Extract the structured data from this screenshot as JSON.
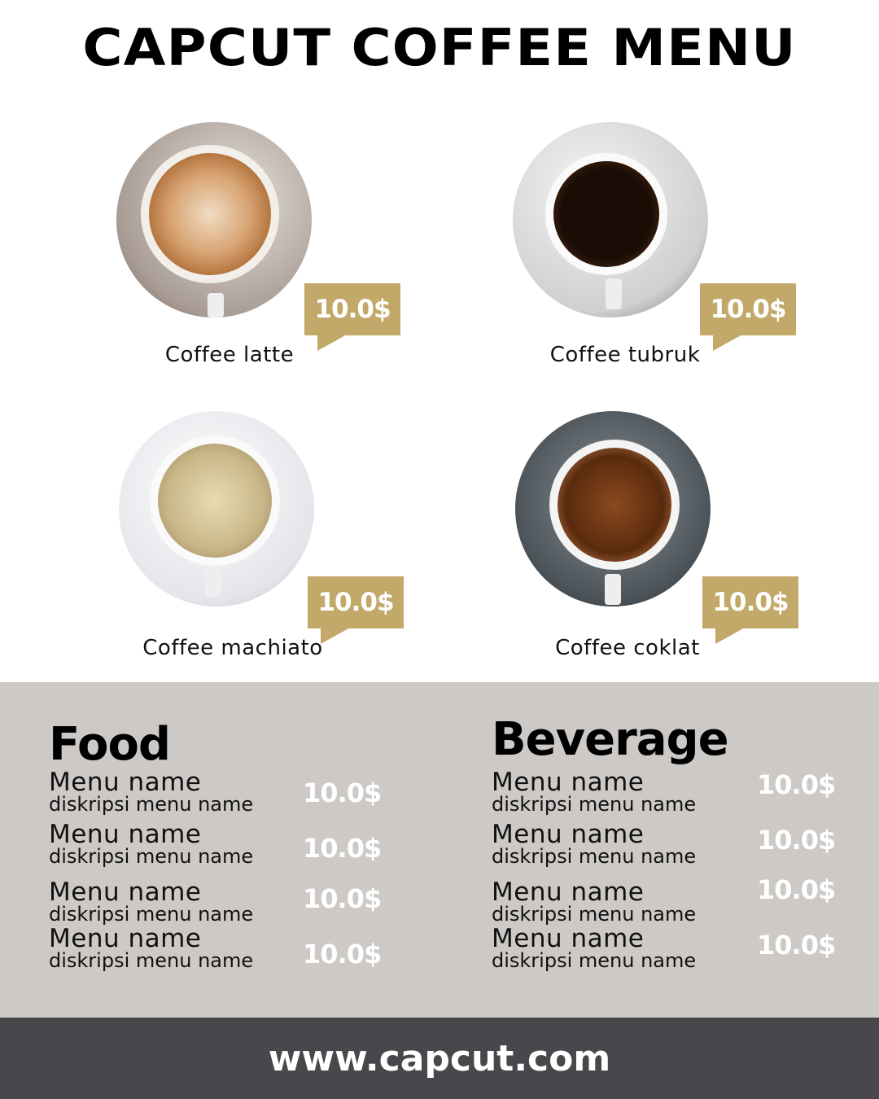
{
  "title": "CAPCUT COFFEE MENU",
  "accent_color": "#c2a96a",
  "items": [
    {
      "name": "Coffee latte",
      "price": "10.0$"
    },
    {
      "name": "Coffee tubruk",
      "price": "10.0$"
    },
    {
      "name": "Coffee machiato",
      "price": "10.0$"
    },
    {
      "name": "Coffee coklat",
      "price": "10.0$"
    }
  ],
  "food": {
    "heading": "Food",
    "rows": [
      {
        "name": "Menu name",
        "desc": "diskripsi menu name",
        "price": "10.0$"
      },
      {
        "name": "Menu name",
        "desc": "diskripsi menu name",
        "price": "10.0$"
      },
      {
        "name": "Menu name",
        "desc": "diskripsi menu name",
        "price": "10.0$"
      },
      {
        "name": "Menu name",
        "desc": "diskripsi menu name",
        "price": "10.0$"
      }
    ]
  },
  "beverage": {
    "heading": "Beverage",
    "rows": [
      {
        "name": "Menu name",
        "desc": "diskripsi menu name",
        "price": "10.0$"
      },
      {
        "name": "Menu name",
        "desc": "diskripsi menu name",
        "price": "10.0$"
      },
      {
        "name": "Menu name",
        "desc": "diskripsi menu name",
        "price": "10.0$"
      },
      {
        "name": "Menu name",
        "desc": "diskripsi menu name",
        "price": "10.0$"
      }
    ]
  },
  "footer": "www.capcut.com"
}
